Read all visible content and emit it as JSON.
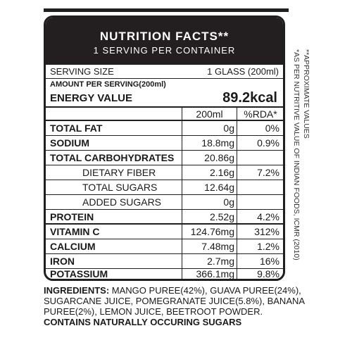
{
  "header": {
    "title": "NUTRITION FACTS**",
    "subtitle": "1 SERVING PER CONTAINER"
  },
  "serving": {
    "label": "SERVING SIZE",
    "value": "1 GLASS (200ml)"
  },
  "amount_per_serving": "AMOUNT PER SERVING(200ml)",
  "energy": {
    "label": "ENERGY VALUE",
    "value": "89.2kcal"
  },
  "columns": {
    "amount": "200ml",
    "rda": "%RDA*"
  },
  "nutrients": [
    {
      "name": "TOTAL FAT",
      "amount": "0g",
      "rda": "0%"
    },
    {
      "name": "SODIUM",
      "amount": "18.8mg",
      "rda": "0.9%"
    },
    {
      "name": "TOTAL CARBOHYDRATES",
      "amount": "20.86g",
      "rda": ""
    },
    {
      "name": "DIETARY FIBER",
      "amount": "2.16g",
      "rda": "7.2%"
    },
    {
      "name": "TOTAL SUGARS",
      "amount": "12.64g",
      "rda": ""
    },
    {
      "name": "ADDED SUGARS",
      "amount": "0g",
      "rda": ""
    },
    {
      "name": "PROTEIN",
      "amount": "2.52g",
      "rda": "4.2%"
    },
    {
      "name": "VITAMIN C",
      "amount": "124.76mg",
      "rda": "312%"
    },
    {
      "name": "CALCIUM",
      "amount": "7.48mg",
      "rda": "1.2%"
    },
    {
      "name": "IRON",
      "amount": "2.7mg",
      "rda": "16%"
    },
    {
      "name": "POTASSIUM",
      "amount": "366.1mg",
      "rda": "9.8%"
    }
  ],
  "notes": {
    "approximate": "**APPROXIMATE VALUES",
    "rda_source": "*AS PER NUTRITIVE VALUE OF INDIAN FOODS, ICMR (2010)"
  },
  "ingredients": {
    "label": "INGREDIENTS:",
    "text": "MANGO PUREE(42%), GUAVA PUREE(24%), SUGARCANE JUICE, POMEGRANATE JUICE(5.8%), BANANA PUREE(2%), LEMON JUICE, BEETROOT POWDER.",
    "contains": "CONTAINS NATURALLY OCCURING SUGARS"
  }
}
